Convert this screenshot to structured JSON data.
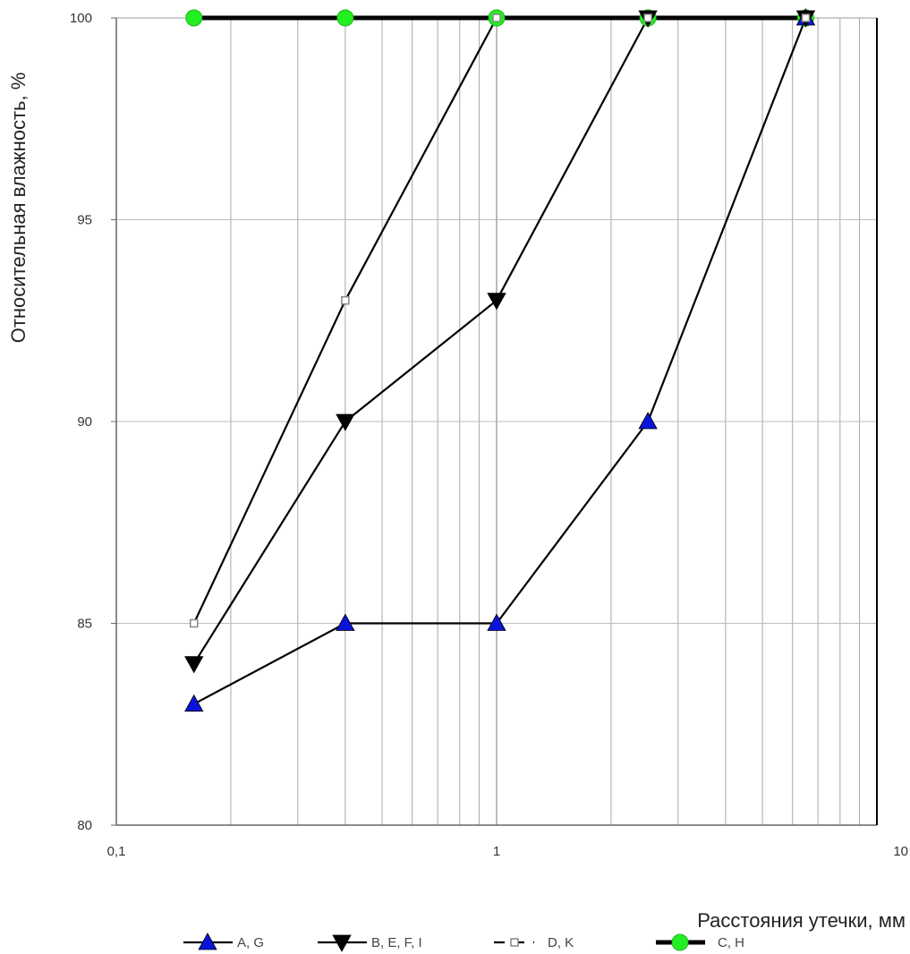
{
  "chart_data": {
    "type": "line",
    "xscale": "log",
    "xlim": [
      0.1,
      10
    ],
    "ylim": [
      80,
      100
    ],
    "grid": true,
    "legend_position": "bottom",
    "xlabel": "Расстояния утечки, мм",
    "ylabel": "Относительная влажность, %",
    "x_tick_labels": [
      "0,1",
      "1",
      "10"
    ],
    "y_tick_labels": [
      "80",
      "85",
      "90",
      "95",
      "100"
    ],
    "series": [
      {
        "name": "A, G",
        "marker": "triangle-up",
        "color": "#000000",
        "marker_color": "#0a14d8",
        "points": [
          {
            "x": 0.16,
            "y": 83
          },
          {
            "x": 0.4,
            "y": 85
          },
          {
            "x": 1.0,
            "y": 85
          },
          {
            "x": 2.5,
            "y": 90
          },
          {
            "x": 6.5,
            "y": 100
          }
        ]
      },
      {
        "name": "B, E, F, I",
        "marker": "triangle-down",
        "color": "#000000",
        "marker_color": "#000000",
        "points": [
          {
            "x": 0.16,
            "y": 84
          },
          {
            "x": 0.4,
            "y": 90
          },
          {
            "x": 1.0,
            "y": 93
          },
          {
            "x": 2.5,
            "y": 100
          },
          {
            "x": 6.5,
            "y": 100
          }
        ]
      },
      {
        "name": "D, K",
        "marker": "square-open",
        "color": "#000000",
        "marker_color": "#888888",
        "points": [
          {
            "x": 0.16,
            "y": 85
          },
          {
            "x": 0.4,
            "y": 93
          },
          {
            "x": 1.0,
            "y": 100
          },
          {
            "x": 2.5,
            "y": 100
          },
          {
            "x": 6.5,
            "y": 100
          }
        ]
      },
      {
        "name": "C, H",
        "marker": "circle",
        "color": "#000000",
        "marker_color": "#22ee22",
        "thick": true,
        "points": [
          {
            "x": 0.16,
            "y": 100
          },
          {
            "x": 0.4,
            "y": 100
          },
          {
            "x": 1.0,
            "y": 100
          },
          {
            "x": 2.5,
            "y": 100
          },
          {
            "x": 6.5,
            "y": 100
          }
        ]
      }
    ]
  }
}
